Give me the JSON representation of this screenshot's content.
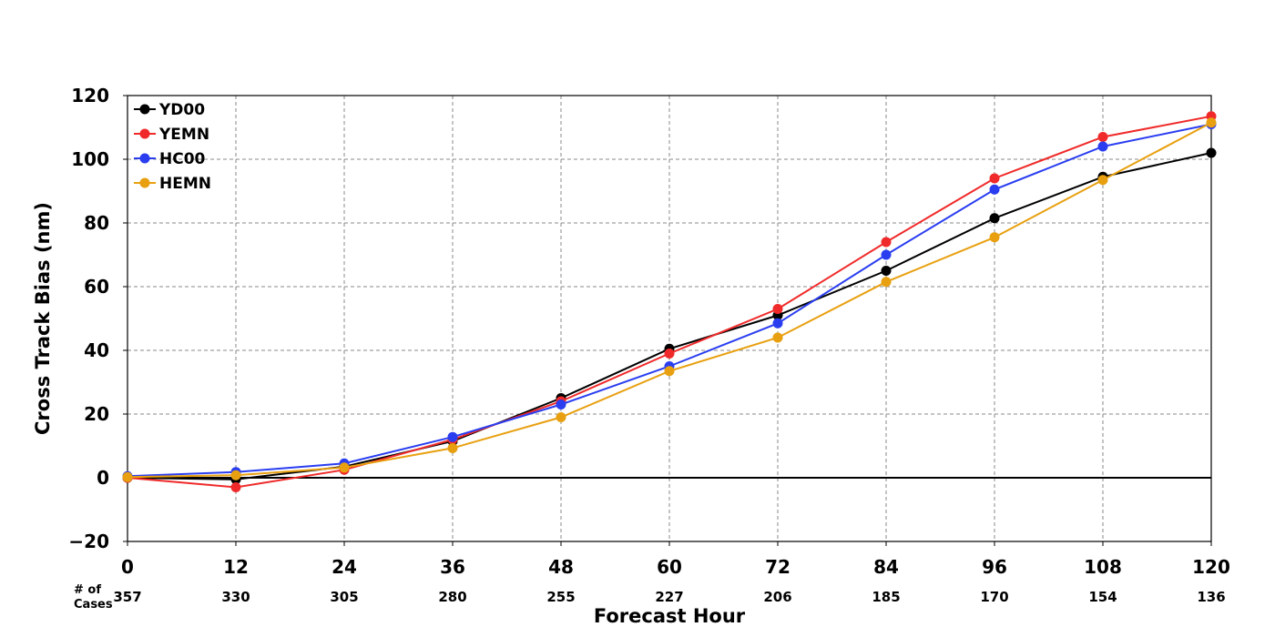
{
  "chart_data": {
    "type": "line",
    "title": "",
    "xlabel": "Forecast Hour",
    "ylabel": "Cross Track Bias (nm)",
    "x": [
      0,
      12,
      24,
      36,
      48,
      60,
      72,
      84,
      96,
      108,
      120
    ],
    "x_tick_labels": [
      "0",
      "12",
      "24",
      "36",
      "48",
      "60",
      "72",
      "84",
      "96",
      "108",
      "120"
    ],
    "xlim": [
      0,
      120
    ],
    "ylim": [
      -20,
      120
    ],
    "y_ticks": [
      -20,
      0,
      20,
      40,
      60,
      80,
      100,
      120
    ],
    "y_tick_labels": [
      "−20",
      "0",
      "20",
      "40",
      "60",
      "80",
      "100",
      "120"
    ],
    "grid": true,
    "zero_line": true,
    "legend_position": "top-left",
    "series": [
      {
        "name": "YD00",
        "color": "#000000",
        "values": [
          0,
          -0.5,
          3.5,
          11.5,
          25,
          40.5,
          51,
          65,
          81.5,
          94.5,
          102
        ]
      },
      {
        "name": "YEMN",
        "color": "#f02a2a",
        "values": [
          0,
          -3,
          2.5,
          12,
          24,
          39,
          53,
          74,
          94,
          107,
          113.5
        ]
      },
      {
        "name": "HC00",
        "color": "#2a3ef0",
        "values": [
          0.5,
          1.8,
          4.5,
          12.8,
          23,
          35,
          48.5,
          70,
          90.5,
          104,
          111
        ]
      },
      {
        "name": "HEMN",
        "color": "#e8a010",
        "values": [
          0.2,
          0.8,
          3.2,
          9.3,
          19,
          33.5,
          44,
          61.5,
          75.5,
          93.5,
          111.5
        ]
      }
    ],
    "cases_header": [
      "# of",
      "Cases"
    ],
    "cases": [
      "357",
      "330",
      "305",
      "280",
      "255",
      "227",
      "206",
      "185",
      "170",
      "154",
      "136"
    ]
  }
}
